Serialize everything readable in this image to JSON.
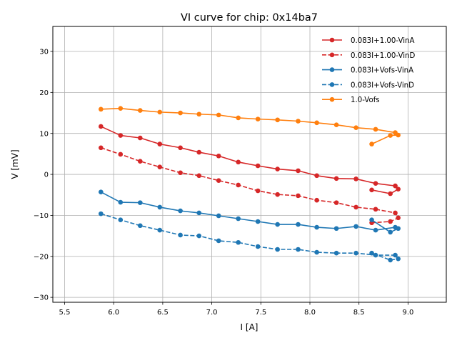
{
  "chart_data": {
    "type": "line",
    "title": "VI curve for chip: 0x14ba7",
    "xlabel": "I [A]",
    "ylabel": "V [mV]",
    "xlim": [
      5.38,
      9.39
    ],
    "ylim": [
      -31.2,
      36.1
    ],
    "xticks": [
      5.5,
      6.0,
      6.5,
      7.0,
      7.5,
      8.0,
      8.5,
      9.0
    ],
    "xtick_labels": [
      "5.5",
      "6.0",
      "6.5",
      "7.0",
      "7.5",
      "8.0",
      "8.5",
      "9.0"
    ],
    "yticks": [
      -30,
      -20,
      -10,
      0,
      10,
      20,
      30
    ],
    "ytick_labels": [
      "−30",
      "−20",
      "−10",
      "0",
      "10",
      "20",
      "30"
    ],
    "grid": true,
    "legend_position": "top-right",
    "x": [
      5.87,
      6.07,
      6.27,
      6.47,
      6.68,
      6.87,
      7.07,
      7.27,
      7.47,
      7.67,
      7.88,
      8.07,
      8.27,
      8.47,
      8.67,
      8.87,
      8.9,
      8.82,
      8.63
    ],
    "series": [
      {
        "name": "0.083I+1.00-VinA",
        "color": "#d62728",
        "linestyle": "solid",
        "values": [
          11.7,
          9.5,
          8.9,
          7.4,
          6.5,
          5.4,
          4.5,
          3.0,
          2.1,
          1.3,
          0.9,
          -0.3,
          -1.0,
          -1.1,
          -2.2,
          -2.8,
          -3.6,
          -4.7,
          -3.8
        ]
      },
      {
        "name": "0.083I+1.00-VinD",
        "color": "#d62728",
        "linestyle": "dashed",
        "values": [
          6.5,
          4.9,
          3.2,
          1.8,
          0.4,
          -0.3,
          -1.5,
          -2.6,
          -4.0,
          -4.9,
          -5.2,
          -6.3,
          -6.9,
          -8.0,
          -8.5,
          -9.4,
          -10.6,
          -11.5,
          -11.8
        ]
      },
      {
        "name": "0.083I+Vofs-VinA",
        "color": "#1f77b4",
        "linestyle": "solid",
        "values": [
          -4.3,
          -6.8,
          -6.9,
          -8.0,
          -8.9,
          -9.4,
          -10.1,
          -10.8,
          -11.5,
          -12.2,
          -12.2,
          -12.9,
          -13.2,
          -12.7,
          -13.6,
          -12.9,
          -13.2,
          -14.1,
          -11.1
        ]
      },
      {
        "name": "0.083I+Vofs-VinD",
        "color": "#1f77b4",
        "linestyle": "dashed",
        "values": [
          -9.6,
          -11.1,
          -12.5,
          -13.6,
          -14.8,
          -15.0,
          -16.2,
          -16.6,
          -17.6,
          -18.3,
          -18.3,
          -19.0,
          -19.2,
          -19.2,
          -19.7,
          -19.7,
          -20.6,
          -20.9,
          -19.2
        ]
      },
      {
        "name": "1.0-Vofs",
        "color": "#ff7f0e",
        "linestyle": "solid",
        "values": [
          15.9,
          16.1,
          15.6,
          15.2,
          15.0,
          14.7,
          14.5,
          13.8,
          13.5,
          13.3,
          13.0,
          12.6,
          12.1,
          11.4,
          11.0,
          10.2,
          9.6,
          9.5,
          7.4
        ]
      }
    ]
  }
}
